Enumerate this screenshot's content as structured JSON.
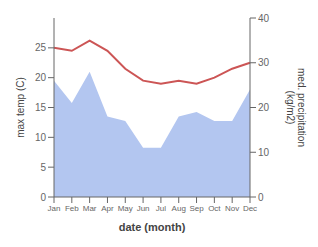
{
  "chart_data": {
    "type": "line",
    "x_label": "date (month)",
    "y_label": "max temp (C)",
    "y2_label": "med. precipitation\n(kg/m2)",
    "categories": [
      "Jan",
      "Feb",
      "Mar",
      "Apr",
      "May",
      "Jun",
      "Jul",
      "Aug",
      "Sep",
      "Oct",
      "Nov",
      "Dec"
    ],
    "series": [
      {
        "type": "area",
        "axis": "y2",
        "color": "#b3c6f0",
        "values": [
          26,
          21,
          28,
          18,
          17,
          11,
          11,
          18,
          19,
          17,
          17,
          24
        ]
      },
      {
        "type": "line",
        "color": "#cc5555",
        "values": [
          25.0,
          24.5,
          26.2,
          24.5,
          21.5,
          19.5,
          19.0,
          19.5,
          19.0,
          20.0,
          21.5,
          22.5
        ]
      }
    ],
    "ylim": [
      0,
      30
    ],
    "yticks": [
      0,
      5,
      10,
      15,
      20,
      25
    ],
    "y2lim": [
      0,
      40
    ],
    "y2ticks": [
      0,
      10,
      20,
      30,
      40
    ]
  }
}
